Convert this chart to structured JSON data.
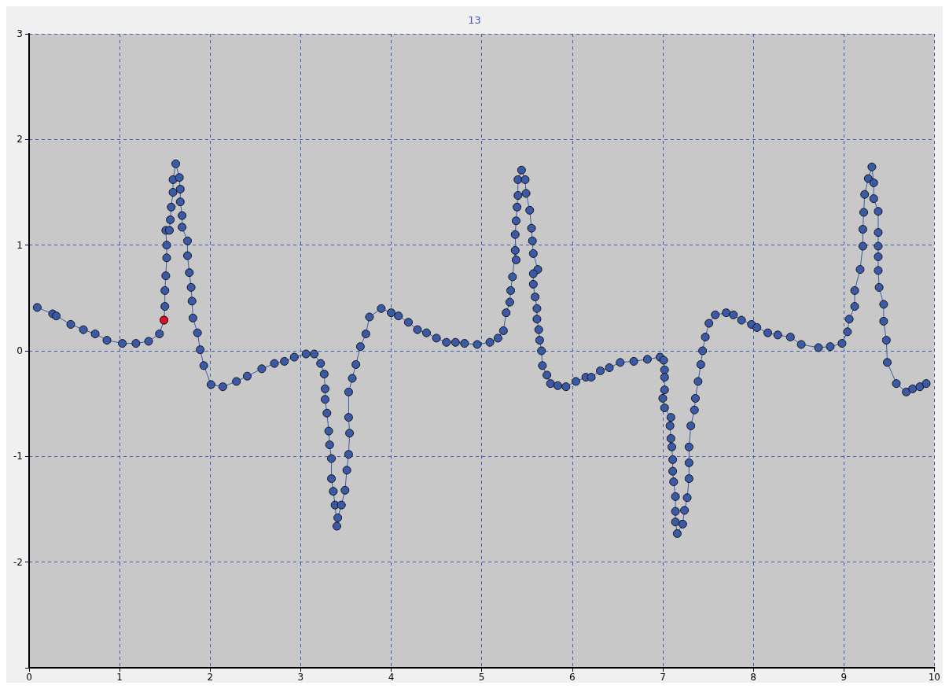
{
  "chart_data": {
    "type": "line",
    "title": "13",
    "xlim": [
      0,
      10
    ],
    "xticks": [
      0,
      1,
      2,
      3,
      4,
      5,
      6,
      7,
      8,
      9,
      10
    ],
    "ylim": [
      -3,
      3
    ],
    "yticks": [
      {
        "value": -3,
        "label": null
      },
      -2,
      -1,
      0,
      1,
      2,
      3
    ],
    "grid": true,
    "marker": "circle",
    "line_style": "solid",
    "series": [
      {
        "color": "#3a5aa8",
        "x": [
          0.09,
          0.26,
          0.3,
          0.46,
          0.6,
          0.73,
          0.86,
          1.03,
          1.18,
          1.32,
          1.44,
          1.49,
          1.5,
          1.5,
          1.51,
          1.52,
          1.52,
          1.51,
          1.55,
          1.56,
          1.57,
          1.59,
          1.59,
          1.62,
          1.66,
          1.67,
          1.67,
          1.69,
          1.69,
          1.75,
          1.75,
          1.77,
          1.79,
          1.8,
          1.81,
          1.86,
          1.89,
          1.93,
          2.01,
          2.14,
          2.29,
          2.41,
          2.57,
          2.71,
          2.82,
          2.93,
          3.06,
          3.15,
          3.22,
          3.26,
          3.27,
          3.27,
          3.29,
          3.31,
          3.32,
          3.34,
          3.34,
          3.36,
          3.38,
          3.4,
          3.41,
          3.45,
          3.49,
          3.51,
          3.53,
          3.54,
          3.53,
          3.53,
          3.57,
          3.61,
          3.66,
          3.72,
          3.76,
          3.89,
          4.0,
          4.08,
          4.19,
          4.29,
          4.39,
          4.5,
          4.61,
          4.71,
          4.81,
          4.95,
          5.09,
          5.18,
          5.24,
          5.27,
          5.31,
          5.32,
          5.34,
          5.37,
          5.38,
          5.37,
          5.38,
          5.39,
          5.4,
          5.4,
          5.44,
          5.48,
          5.49,
          5.53,
          5.55,
          5.56,
          5.57,
          5.62,
          5.57,
          5.57,
          5.59,
          5.61,
          5.61,
          5.63,
          5.64,
          5.66,
          5.67,
          5.72,
          5.76,
          5.84,
          5.93,
          6.04,
          6.15,
          6.21,
          6.31,
          6.41,
          6.53,
          6.68,
          6.83,
          6.97,
          7.01,
          7.02,
          7.02,
          7.02,
          7.0,
          7.02,
          7.09,
          7.08,
          7.09,
          7.1,
          7.11,
          7.11,
          7.12,
          7.14,
          7.14,
          7.14,
          7.16,
          7.22,
          7.24,
          7.27,
          7.29,
          7.29,
          7.29,
          7.31,
          7.35,
          7.36,
          7.39,
          7.42,
          7.44,
          7.47,
          7.51,
          7.58,
          7.7,
          7.78,
          7.87,
          7.98,
          8.04,
          8.16,
          8.27,
          8.41,
          8.53,
          8.72,
          8.85,
          8.98,
          9.04,
          9.06,
          9.12,
          9.12,
          9.18,
          9.21,
          9.21,
          9.22,
          9.23,
          9.27,
          9.31,
          9.33,
          9.33,
          9.38,
          9.38,
          9.38,
          9.38,
          9.38,
          9.39,
          9.44,
          9.44,
          9.47,
          9.48,
          9.58,
          9.69,
          9.76,
          9.84,
          9.91
        ],
        "values": [
          0.41,
          0.35,
          0.33,
          0.25,
          0.2,
          0.16,
          0.1,
          0.07,
          0.07,
          0.09,
          0.16,
          0.29,
          0.42,
          0.57,
          0.71,
          0.88,
          1.0,
          1.14,
          1.14,
          1.24,
          1.36,
          1.5,
          1.62,
          1.77,
          1.64,
          1.53,
          1.41,
          1.28,
          1.17,
          1.04,
          0.9,
          0.74,
          0.6,
          0.47,
          0.31,
          0.17,
          0.01,
          -0.14,
          -0.32,
          -0.34,
          -0.29,
          -0.24,
          -0.17,
          -0.12,
          -0.1,
          -0.06,
          -0.03,
          -0.03,
          -0.12,
          -0.22,
          -0.36,
          -0.46,
          -0.59,
          -0.76,
          -0.89,
          -1.02,
          -1.21,
          -1.33,
          -1.46,
          -1.66,
          -1.58,
          -1.46,
          -1.32,
          -1.13,
          -0.98,
          -0.78,
          -0.63,
          -0.39,
          -0.26,
          -0.13,
          0.04,
          0.16,
          0.32,
          0.4,
          0.36,
          0.33,
          0.27,
          0.2,
          0.17,
          0.12,
          0.08,
          0.08,
          0.07,
          0.06,
          0.08,
          0.12,
          0.19,
          0.36,
          0.46,
          0.57,
          0.7,
          0.95,
          0.86,
          1.1,
          1.23,
          1.36,
          1.47,
          1.62,
          1.71,
          1.62,
          1.49,
          1.33,
          1.16,
          1.04,
          0.92,
          0.77,
          0.73,
          0.63,
          0.51,
          0.4,
          0.3,
          0.2,
          0.1,
          0.0,
          -0.14,
          -0.23,
          -0.31,
          -0.33,
          -0.34,
          -0.29,
          -0.25,
          -0.25,
          -0.19,
          -0.16,
          -0.11,
          -0.1,
          -0.08,
          -0.06,
          -0.09,
          -0.18,
          -0.25,
          -0.37,
          -0.45,
          -0.54,
          -0.63,
          -0.71,
          -0.83,
          -0.91,
          -1.03,
          -1.14,
          -1.24,
          -1.38,
          -1.52,
          -1.62,
          -1.73,
          -1.64,
          -1.51,
          -1.39,
          -1.21,
          -1.06,
          -0.91,
          -0.71,
          -0.56,
          -0.45,
          -0.29,
          -0.13,
          0.0,
          0.13,
          0.26,
          0.34,
          0.36,
          0.34,
          0.29,
          0.25,
          0.22,
          0.17,
          0.15,
          0.13,
          0.06,
          0.03,
          0.04,
          0.07,
          0.18,
          0.3,
          0.42,
          0.57,
          0.77,
          0.99,
          1.15,
          1.31,
          1.48,
          1.63,
          1.74,
          1.59,
          1.44,
          1.32,
          1.12,
          0.99,
          0.89,
          0.76,
          0.6,
          0.44,
          0.28,
          0.1,
          -0.11,
          -0.31,
          -0.39,
          -0.36,
          -0.34,
          -0.31
        ]
      },
      {
        "type": "scatter",
        "color": "#ff0000",
        "x": [
          1.49
        ],
        "values": [
          0.29
        ]
      }
    ]
  }
}
